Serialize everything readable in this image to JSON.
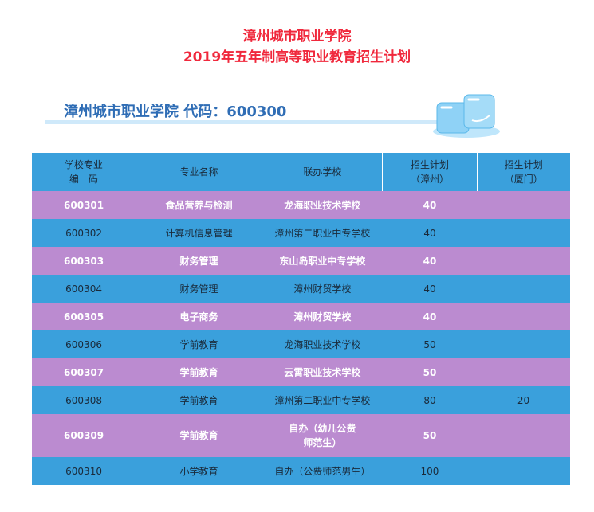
{
  "title": {
    "line1": "漳州城市职业学院",
    "line2": "2019年五年制高等职业教育招生计划"
  },
  "section": {
    "heading": "漳州城市职业学院 代码：600300"
  },
  "colors": {
    "title": "#f0283c",
    "heading": "#2f6db5",
    "row_purple": "#bb8bd0",
    "row_blue": "#3aa0dc"
  },
  "table": {
    "headers": [
      "学校专业\n编　码",
      "专业名称",
      "联办学校",
      "招生计划\n（漳州）",
      "招生计划\n（厦门）"
    ],
    "rows": [
      {
        "code": "600301",
        "major": "食品营养与检测",
        "school": "龙海职业技术学校",
        "zhangzhou": "40",
        "xiamen": ""
      },
      {
        "code": "600302",
        "major": "计算机信息管理",
        "school": "漳州第二职业中专学校",
        "zhangzhou": "40",
        "xiamen": ""
      },
      {
        "code": "600303",
        "major": "财务管理",
        "school": "东山岛职业中专学校",
        "zhangzhou": "40",
        "xiamen": ""
      },
      {
        "code": "600304",
        "major": "财务管理",
        "school": "漳州财贸学校",
        "zhangzhou": "40",
        "xiamen": ""
      },
      {
        "code": "600305",
        "major": "电子商务",
        "school": "漳州财贸学校",
        "zhangzhou": "40",
        "xiamen": ""
      },
      {
        "code": "600306",
        "major": "学前教育",
        "school": "龙海职业技术学校",
        "zhangzhou": "50",
        "xiamen": ""
      },
      {
        "code": "600307",
        "major": "学前教育",
        "school": "云霄职业技术学校",
        "zhangzhou": "50",
        "xiamen": ""
      },
      {
        "code": "600308",
        "major": "学前教育",
        "school": "漳州第二职业中专学校",
        "zhangzhou": "80",
        "xiamen": "20"
      },
      {
        "code": "600309",
        "major": "学前教育",
        "school": "自办（幼儿公费师范生）",
        "zhangzhou": "50",
        "xiamen": ""
      },
      {
        "code": "600310",
        "major": "小学教育",
        "school": "自办（公费师范男生）",
        "zhangzhou": "100",
        "xiamen": ""
      }
    ]
  }
}
